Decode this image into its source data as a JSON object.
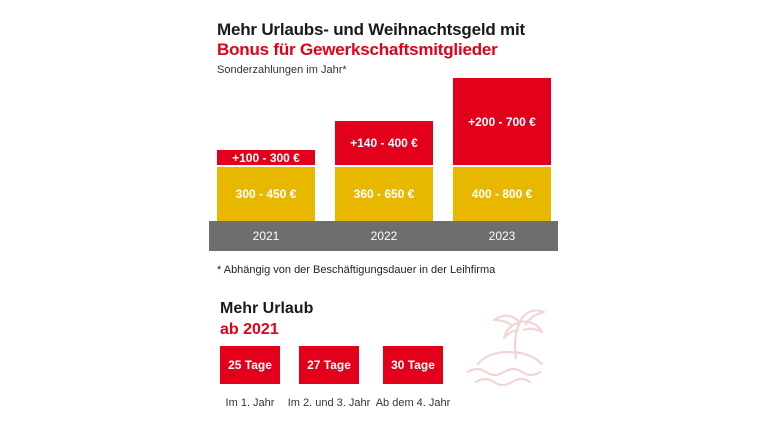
{
  "header": {
    "title_line1": "Mehr Urlaubs- und Weihnachtsgeld mit",
    "title_line2": "Bonus für Gewerkschaftsmitglieder",
    "subtitle": "Sonderzahlungen im Jahr*"
  },
  "colors": {
    "red": "#e2001a",
    "yellow": "#e8b800",
    "axis_bar": "#6e6e6e"
  },
  "chart_data": {
    "type": "bar",
    "stacked": true,
    "title": "Mehr Urlaubs- und Weihnachtsgeld mit Bonus für Gewerkschaftsmitglieder",
    "subtitle": "Sonderzahlungen im Jahr*",
    "categories": [
      "2021",
      "2022",
      "2023"
    ],
    "series": [
      {
        "color": "#e8b800",
        "ranges": [
          [
            300,
            450
          ],
          [
            360,
            650
          ],
          [
            400,
            800
          ]
        ],
        "labels": [
          "300 - 450 €",
          "360 - 650 €",
          "400 - 800 €"
        ]
      },
      {
        "color": "#e2001a",
        "ranges": [
          [
            100,
            300
          ],
          [
            140,
            400
          ],
          [
            200,
            700
          ]
        ],
        "labels": [
          "+100 - 300 €",
          "+140 - 400 €",
          "+200 - 700 €"
        ]
      }
    ],
    "bar_max_values": [
      750,
      1050,
      1500
    ],
    "footnote": "* Abhängig von der Beschäftigungsdauer in der Leihfirma"
  },
  "vacation": {
    "title_line1": "Mehr Urlaub",
    "title_line2": "ab 2021",
    "items": [
      {
        "value": "25 Tage",
        "label": "Im 1. Jahr"
      },
      {
        "value": "27 Tage",
        "label": "Im 2. und 3. Jahr"
      },
      {
        "value": "30 Tage",
        "label": "Ab dem 4. Jahr"
      }
    ],
    "decoration_icon": "palm-island-icon"
  }
}
